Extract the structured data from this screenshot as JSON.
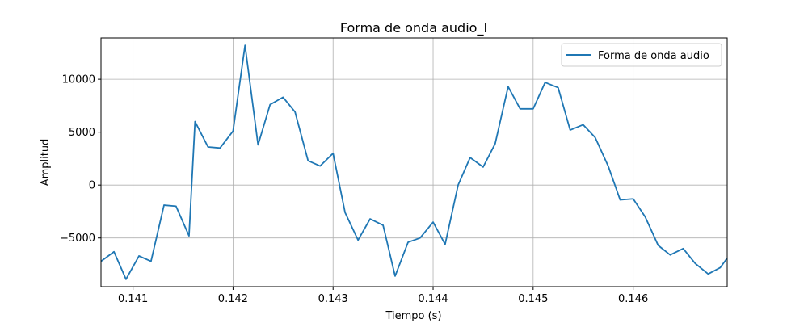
{
  "chart_data": {
    "type": "line",
    "title": "Forma de onda audio_I",
    "xlabel": "Tiempo (s)",
    "ylabel": "Amplitud",
    "xlim": [
      0.14068,
      0.14694
    ],
    "ylim": [
      -9600,
      13900
    ],
    "xticks": [
      0.141,
      0.142,
      0.143,
      0.144,
      0.145,
      0.146
    ],
    "xtick_labels": [
      "0.141",
      "0.142",
      "0.143",
      "0.144",
      "0.145",
      "0.146"
    ],
    "yticks": [
      -5000,
      0,
      5000,
      10000
    ],
    "ytick_labels": [
      "−5000",
      "0",
      "5000",
      "10000"
    ],
    "grid": true,
    "legend_position": "upper right",
    "line_color": "#1f77b4",
    "series": [
      {
        "name": "Forma de onda audio",
        "x": [
          0.14068,
          0.14081,
          0.14093,
          0.14106,
          0.14118,
          0.14131,
          0.14143,
          0.14156,
          0.14162,
          0.14175,
          0.14187,
          0.142,
          0.14212,
          0.14225,
          0.14237,
          0.1425,
          0.14262,
          0.14275,
          0.14287,
          0.143,
          0.14312,
          0.14325,
          0.14337,
          0.1435,
          0.14362,
          0.14375,
          0.14387,
          0.144,
          0.14412,
          0.14425,
          0.14437,
          0.1445,
          0.14462,
          0.14475,
          0.14487,
          0.145,
          0.14512,
          0.14525,
          0.14537,
          0.1455,
          0.14562,
          0.14575,
          0.14587,
          0.146,
          0.14612,
          0.14625,
          0.14637,
          0.1465,
          0.14662,
          0.14675,
          0.14687,
          0.14694
        ],
        "values": [
          -7200,
          -6300,
          -8900,
          -6700,
          -7200,
          -1900,
          -2000,
          -4800,
          6000,
          3600,
          3500,
          5100,
          13200,
          3800,
          7600,
          8300,
          6900,
          2300,
          1800,
          3000,
          -2600,
          -5200,
          -3200,
          -3800,
          -8600,
          -5400,
          -5000,
          -3500,
          -5600,
          0,
          2600,
          1700,
          3900,
          9300,
          7200,
          7200,
          9700,
          9200,
          5200,
          5700,
          4500,
          1800,
          -1400,
          -1300,
          -3000,
          -5700,
          -6600,
          -6000,
          -7400,
          -8400,
          -7800,
          -6900
        ]
      }
    ]
  }
}
